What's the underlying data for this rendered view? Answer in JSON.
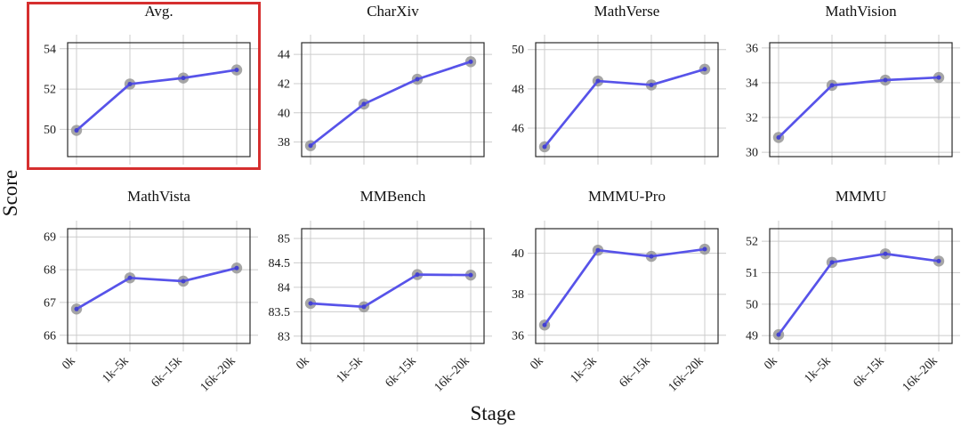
{
  "figure": {
    "ylabel": "Score",
    "xlabel": "Stage",
    "highlight_color": "#d62f2f",
    "line_color": "#5753e9",
    "marker_outer_color": "#969696",
    "marker_inner_color": "#4442cf",
    "grid_color": "#cccccc",
    "frame_color": "#2b2b2b",
    "tick_text_color": "#1a1a1a"
  },
  "chart_data": [
    {
      "type": "line",
      "title": "Avg.",
      "highlighted": true,
      "show_x_labels": false,
      "categories": [
        "0k",
        "1k–5k",
        "6k–15k",
        "16k–20k"
      ],
      "values": [
        49.95,
        52.25,
        52.55,
        52.95
      ],
      "yticks": [
        50,
        52,
        54
      ],
      "ytick_labels": [
        "50",
        "52",
        "54"
      ],
      "ylim": [
        48.65,
        54.3
      ]
    },
    {
      "type": "line",
      "title": "CharXiv",
      "highlighted": false,
      "show_x_labels": false,
      "categories": [
        "0k",
        "1k–5k",
        "6k–15k",
        "16k–20k"
      ],
      "values": [
        37.75,
        40.6,
        42.3,
        43.5
      ],
      "yticks": [
        38,
        40,
        42,
        44
      ],
      "ytick_labels": [
        "38",
        "40",
        "42",
        "44"
      ],
      "ylim": [
        37.0,
        44.8
      ]
    },
    {
      "type": "line",
      "title": "MathVerse",
      "highlighted": false,
      "show_x_labels": false,
      "categories": [
        "0k",
        "1k–5k",
        "6k–15k",
        "16k–20k"
      ],
      "values": [
        45.05,
        48.4,
        48.2,
        49.0
      ],
      "yticks": [
        46,
        48,
        50
      ],
      "ytick_labels": [
        "46",
        "48",
        "50"
      ],
      "ylim": [
        44.55,
        50.35
      ]
    },
    {
      "type": "line",
      "title": "MathVision",
      "highlighted": false,
      "show_x_labels": false,
      "categories": [
        "0k",
        "1k–5k",
        "6k–15k",
        "16k–20k"
      ],
      "values": [
        30.85,
        33.85,
        34.15,
        34.3
      ],
      "yticks": [
        30,
        32,
        34,
        36
      ],
      "ytick_labels": [
        "30",
        "32",
        "34",
        "36"
      ],
      "ylim": [
        29.75,
        36.3
      ]
    },
    {
      "type": "line",
      "title": "MathVista",
      "highlighted": false,
      "show_x_labels": true,
      "categories": [
        "0k",
        "1k–5k",
        "6k–15k",
        "16k–20k"
      ],
      "values": [
        66.8,
        67.75,
        67.65,
        68.05
      ],
      "yticks": [
        66,
        67,
        68,
        69
      ],
      "ytick_labels": [
        "66",
        "67",
        "68",
        "69"
      ],
      "ylim": [
        65.75,
        69.25
      ]
    },
    {
      "type": "line",
      "title": "MMBench",
      "highlighted": false,
      "show_x_labels": true,
      "categories": [
        "0k",
        "1k–5k",
        "6k–15k",
        "16k–20k"
      ],
      "values": [
        83.67,
        83.6,
        84.26,
        84.25
      ],
      "yticks": [
        83,
        83.5,
        84,
        84.5,
        85
      ],
      "ytick_labels": [
        "83",
        "83.5",
        "84",
        "84.5",
        "85"
      ],
      "ylim": [
        82.85,
        85.2
      ]
    },
    {
      "type": "line",
      "title": "MMMU-Pro",
      "highlighted": false,
      "show_x_labels": true,
      "categories": [
        "0k",
        "1k–5k",
        "6k–15k",
        "16k–20k"
      ],
      "values": [
        36.5,
        40.15,
        39.85,
        40.2
      ],
      "yticks": [
        36,
        38,
        40
      ],
      "ytick_labels": [
        "36",
        "38",
        "40"
      ],
      "ylim": [
        35.6,
        41.2
      ]
    },
    {
      "type": "line",
      "title": "MMMU",
      "highlighted": false,
      "show_x_labels": true,
      "categories": [
        "0k",
        "1k–5k",
        "6k–15k",
        "16k–20k"
      ],
      "values": [
        49.03,
        51.33,
        51.6,
        51.37
      ],
      "yticks": [
        49,
        50,
        51,
        52
      ],
      "ytick_labels": [
        "49",
        "50",
        "51",
        "52"
      ],
      "ylim": [
        48.75,
        52.4
      ]
    }
  ]
}
